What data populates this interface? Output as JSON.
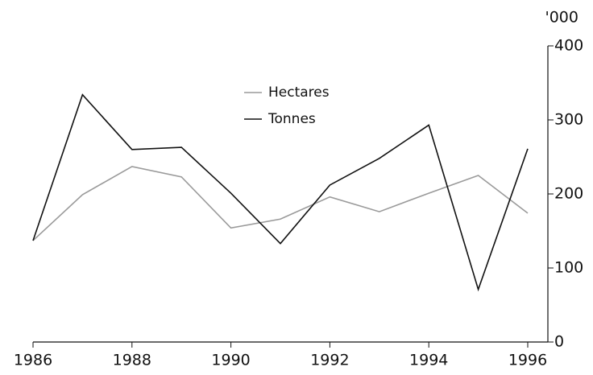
{
  "chart_data": {
    "type": "line",
    "y_label": "'000",
    "x": [
      1986,
      1987,
      1988,
      1989,
      1990,
      1991,
      1992,
      1993,
      1994,
      1995,
      1996
    ],
    "series": [
      {
        "name": "Hectares",
        "color": "#9a9a9a",
        "values": [
          137,
          199,
          237,
          223,
          154,
          166,
          196,
          176,
          201,
          225,
          174
        ]
      },
      {
        "name": "Tonnes",
        "color": "#111111",
        "values": [
          137,
          334,
          260,
          263,
          201,
          133,
          212,
          248,
          293,
          71,
          261
        ]
      }
    ],
    "xlim": [
      1986,
      1996
    ],
    "xticks": [
      1986,
      1988,
      1990,
      1992,
      1994,
      1996
    ],
    "ylim": [
      0,
      400
    ],
    "yticks": [
      0,
      100,
      200,
      300,
      400
    ],
    "y_axis_side": "right",
    "grid": false
  }
}
